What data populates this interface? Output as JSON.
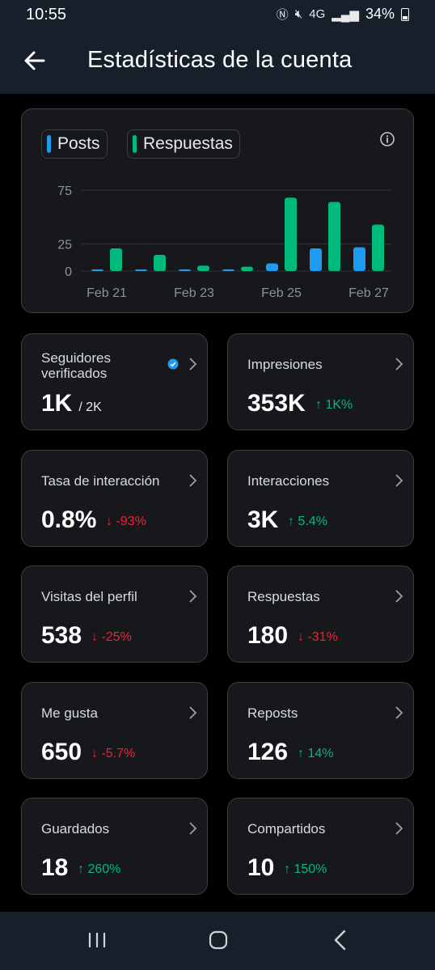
{
  "status": {
    "time": "10:55",
    "battery": "34%",
    "network": "4G"
  },
  "header": {
    "title": "Estadísticas de la cuenta"
  },
  "chart": {
    "legend": {
      "posts": "Posts",
      "replies": "Respuestas"
    },
    "colors": {
      "posts": "#1d9bf0",
      "replies": "#00ba7c"
    }
  },
  "chart_data": {
    "type": "bar",
    "categories": [
      "Feb 21",
      "Feb 22",
      "Feb 23",
      "Feb 24",
      "Feb 25",
      "Feb 26",
      "Feb 27"
    ],
    "x_tick_labels": [
      "Feb 21",
      "Feb 23",
      "Feb 25",
      "Feb 27"
    ],
    "series": [
      {
        "name": "Posts",
        "values": [
          1,
          1,
          1,
          0,
          7,
          21,
          22
        ]
      },
      {
        "name": "Respuestas",
        "values": [
          21,
          15,
          5,
          4,
          68,
          64,
          43
        ]
      }
    ],
    "ylim": [
      0,
      75
    ],
    "yticks": [
      0,
      25,
      75
    ],
    "grid": true,
    "legend": "top-left"
  },
  "stats": [
    {
      "label": "Seguidores verificados",
      "value": "1K",
      "sub": "/ 2K",
      "delta": "",
      "direction": "",
      "verified": true
    },
    {
      "label": "Impresiones",
      "value": "353K",
      "sub": "",
      "delta": "1K%",
      "direction": "up"
    },
    {
      "label": "Tasa de interacción",
      "value": "0.8%",
      "sub": "",
      "delta": "-93%",
      "direction": "down"
    },
    {
      "label": "Interacciones",
      "value": "3K",
      "sub": "",
      "delta": "5.4%",
      "direction": "up"
    },
    {
      "label": "Visitas del perfil",
      "value": "538",
      "sub": "",
      "delta": "-25%",
      "direction": "down"
    },
    {
      "label": "Respuestas",
      "value": "180",
      "sub": "",
      "delta": "-31%",
      "direction": "down"
    },
    {
      "label": "Me gusta",
      "value": "650",
      "sub": "",
      "delta": "-5.7%",
      "direction": "down"
    },
    {
      "label": "Reposts",
      "value": "126",
      "sub": "",
      "delta": "14%",
      "direction": "up"
    },
    {
      "label": "Guardados",
      "value": "18",
      "sub": "",
      "delta": "260%",
      "direction": "up"
    },
    {
      "label": "Compartidos",
      "value": "10",
      "sub": "",
      "delta": "150%",
      "direction": "up"
    }
  ]
}
